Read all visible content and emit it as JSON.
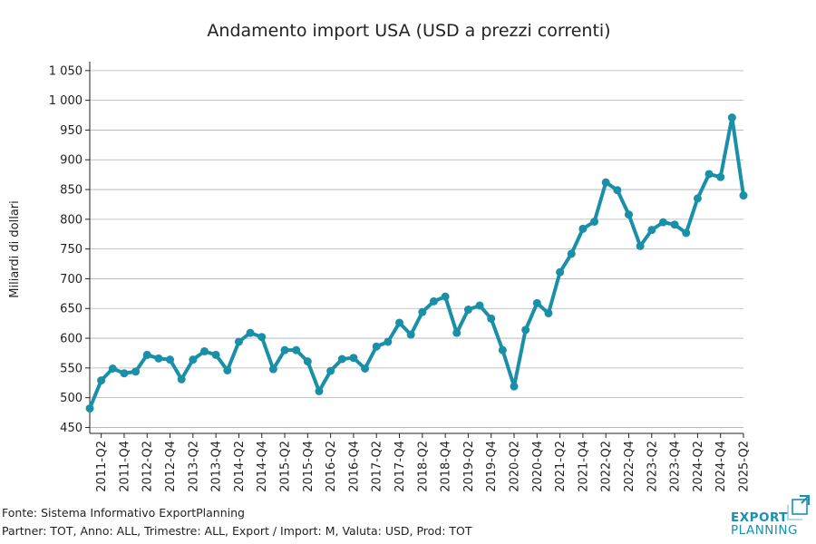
{
  "chart_data": {
    "type": "line",
    "title": "Andamento import USA (USD a prezzi correnti)",
    "xlabel": "",
    "ylabel": "Miliardi di dollari",
    "ylim": [
      440,
      1065
    ],
    "yticks": [
      450,
      500,
      550,
      600,
      650,
      700,
      750,
      800,
      850,
      900,
      950,
      1000,
      1050
    ],
    "ytick_labels": [
      "450",
      "500",
      "550",
      "600",
      "650",
      "700",
      "750",
      "800",
      "850",
      "900",
      "950",
      "1 000",
      "1 050"
    ],
    "x": [
      "2011-Q1",
      "2011-Q2",
      "2011-Q3",
      "2011-Q4",
      "2012-Q1",
      "2012-Q2",
      "2012-Q3",
      "2012-Q4",
      "2013-Q1",
      "2013-Q2",
      "2013-Q3",
      "2013-Q4",
      "2014-Q1",
      "2014-Q2",
      "2014-Q3",
      "2014-Q4",
      "2015-Q1",
      "2015-Q2",
      "2015-Q3",
      "2015-Q4",
      "2016-Q1",
      "2016-Q2",
      "2016-Q3",
      "2016-Q4",
      "2017-Q1",
      "2017-Q2",
      "2017-Q3",
      "2017-Q4",
      "2018-Q1",
      "2018-Q2",
      "2018-Q3",
      "2018-Q4",
      "2019-Q1",
      "2019-Q2",
      "2019-Q3",
      "2019-Q4",
      "2020-Q1",
      "2020-Q2",
      "2020-Q3",
      "2020-Q4",
      "2021-Q1",
      "2021-Q2",
      "2021-Q3",
      "2021-Q4",
      "2022-Q1",
      "2022-Q2",
      "2022-Q3",
      "2022-Q4",
      "2023-Q1",
      "2023-Q2",
      "2023-Q3",
      "2023-Q4",
      "2024-Q1",
      "2024-Q2",
      "2024-Q3",
      "2024-Q4",
      "2025-Q1",
      "2025-Q2"
    ],
    "x_tick_labels": [
      "2011-Q2",
      "2011-Q4",
      "2012-Q2",
      "2012-Q4",
      "2013-Q2",
      "2013-Q4",
      "2014-Q2",
      "2014-Q4",
      "2015-Q2",
      "2015-Q4",
      "2016-Q2",
      "2016-Q4",
      "2017-Q2",
      "2017-Q4",
      "2018-Q2",
      "2018-Q4",
      "2019-Q2",
      "2019-Q4",
      "2020-Q2",
      "2020-Q4",
      "2021-Q2",
      "2021-Q4",
      "2022-Q2",
      "2022-Q4",
      "2023-Q2",
      "2023-Q4",
      "2024-Q2",
      "2024-Q4",
      "2025-Q2"
    ],
    "series": [
      {
        "values": [
          482,
          529,
          549,
          541,
          544,
          572,
          566,
          564,
          531,
          564,
          578,
          572,
          546,
          594,
          609,
          602,
          548,
          580,
          580,
          561,
          511,
          545,
          565,
          567,
          549,
          586,
          594,
          626,
          606,
          644,
          662,
          670,
          609,
          648,
          655,
          633,
          580,
          519,
          614,
          659,
          642,
          711,
          742,
          784,
          796,
          862,
          849,
          808,
          755,
          782,
          795,
          791,
          777,
          835,
          876,
          871,
          971,
          840
        ]
      }
    ],
    "grid": "horizontal",
    "legend": "none",
    "colors": {
      "line": "#1a8fa8",
      "grid": "#b0b0b0",
      "axis": "#222222"
    }
  },
  "footer": {
    "source": "Fonte: Sistema Informativo ExportPlanning",
    "params": "Partner: TOT, Anno: ALL, Trimestre: ALL, Export / Import: M, Valuta: USD, Prod: TOT"
  },
  "logo": {
    "line1": "EXPORT",
    "line2": "PLANNING",
    "color": "#1a8fb4"
  }
}
